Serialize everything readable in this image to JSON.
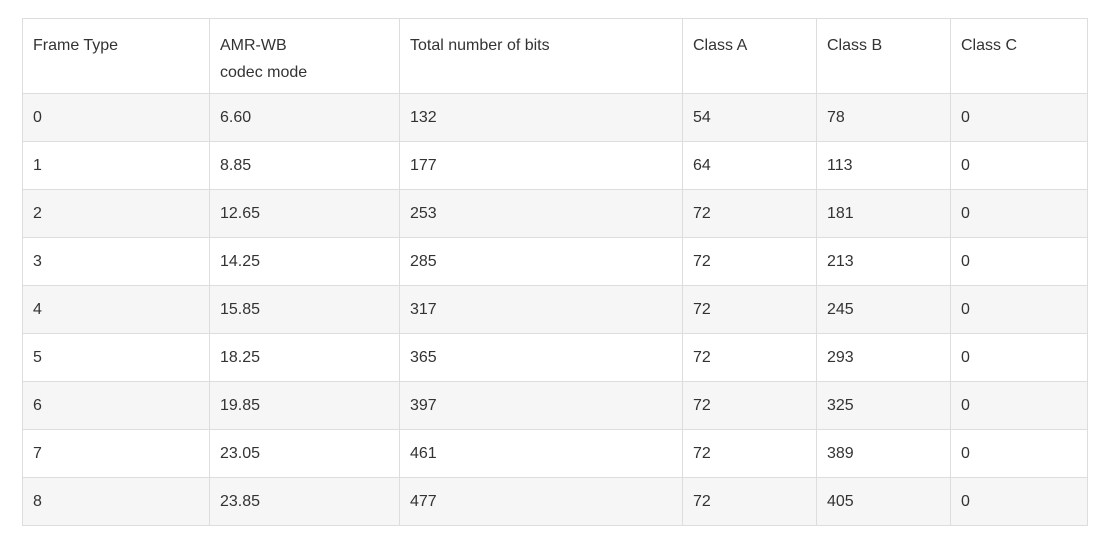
{
  "table": {
    "headers": [
      "Frame Type",
      "AMR-WB codec mode",
      "Total number of bits",
      "Class A",
      "Class B",
      "Class C"
    ],
    "header_lines": {
      "amr_line1": "AMR-WB",
      "amr_line2": "codec mode"
    },
    "rows": [
      [
        "0",
        "6.60",
        "132",
        "54",
        "78",
        "0"
      ],
      [
        "1",
        "8.85",
        "177",
        "64",
        "113",
        "0"
      ],
      [
        "2",
        "12.65",
        "253",
        "72",
        "181",
        "0"
      ],
      [
        "3",
        "14.25",
        "285",
        "72",
        "213",
        "0"
      ],
      [
        "4",
        "15.85",
        "317",
        "72",
        "245",
        "0"
      ],
      [
        "5",
        "18.25",
        "365",
        "72",
        "293",
        "0"
      ],
      [
        "6",
        "19.85",
        "397",
        "72",
        "325",
        "0"
      ],
      [
        "7",
        "23.05",
        "461",
        "72",
        "389",
        "0"
      ],
      [
        "8",
        "23.85",
        "477",
        "72",
        "405",
        "0"
      ]
    ]
  },
  "colors": {
    "border": "#dddddd",
    "stripe": "#f6f6f6",
    "text": "#333333"
  }
}
